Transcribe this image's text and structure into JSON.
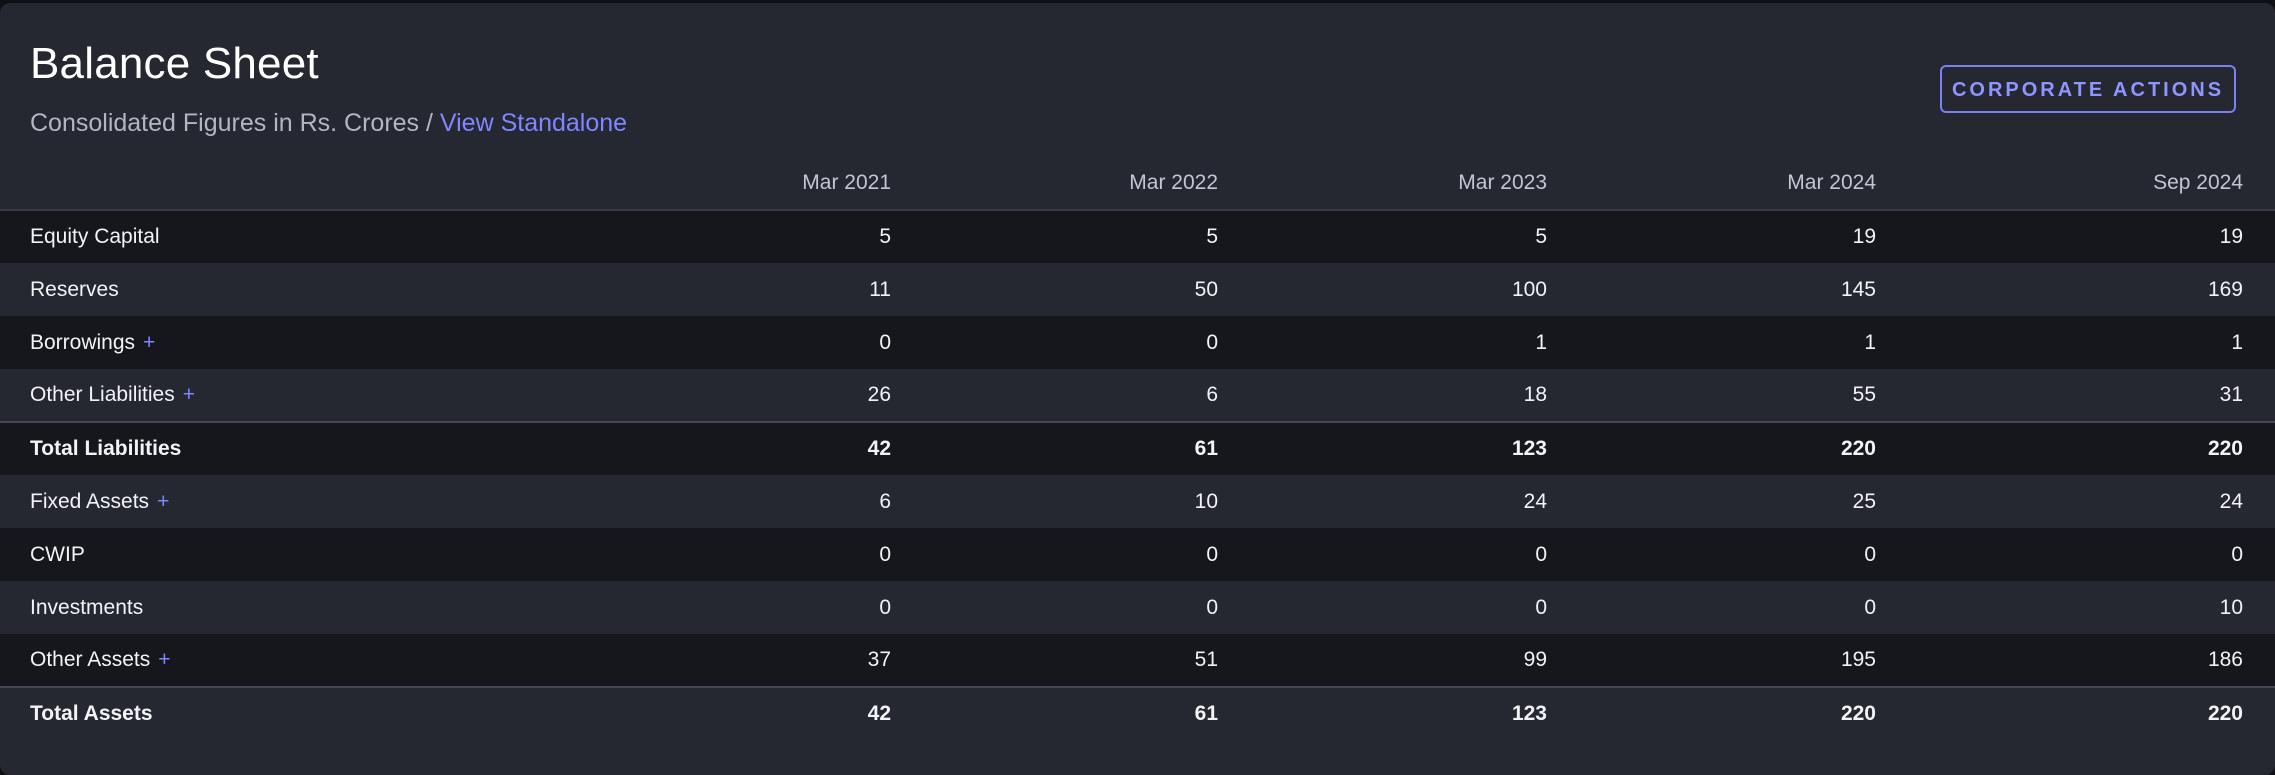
{
  "header": {
    "title": "Balance Sheet",
    "subtitle_prefix": "Consolidated Figures in Rs. Crores / ",
    "subtitle_link": "View Standalone",
    "action_button": "CORPORATE ACTIONS"
  },
  "colors": {
    "background": "#252731",
    "row_alt": "#15171d",
    "accent": "#7f86ff"
  },
  "table": {
    "columns": [
      "",
      "Mar 2021",
      "Mar 2022",
      "Mar 2023",
      "Mar 2024",
      "Sep 2024"
    ],
    "rows": [
      {
        "label": "Equity Capital",
        "expand": "",
        "values": [
          "5",
          "5",
          "5",
          "19",
          "19"
        ]
      },
      {
        "label": "Reserves",
        "expand": "",
        "values": [
          "11",
          "50",
          "100",
          "145",
          "169"
        ]
      },
      {
        "label": "Borrowings",
        "expand": "+",
        "values": [
          "0",
          "0",
          "1",
          "1",
          "1"
        ]
      },
      {
        "label": "Other Liabilities",
        "expand": "+",
        "values": [
          "26",
          "6",
          "18",
          "55",
          "31"
        ]
      },
      {
        "label": "Total Liabilities",
        "expand": "",
        "values": [
          "42",
          "61",
          "123",
          "220",
          "220"
        ]
      },
      {
        "label": "Fixed Assets",
        "expand": "+",
        "values": [
          "6",
          "10",
          "24",
          "25",
          "24"
        ]
      },
      {
        "label": "CWIP",
        "expand": "",
        "values": [
          "0",
          "0",
          "0",
          "0",
          "0"
        ]
      },
      {
        "label": "Investments",
        "expand": "",
        "values": [
          "0",
          "0",
          "0",
          "0",
          "10"
        ]
      },
      {
        "label": "Other Assets",
        "expand": "+",
        "values": [
          "37",
          "51",
          "99",
          "195",
          "186"
        ]
      },
      {
        "label": "Total Assets",
        "expand": "",
        "values": [
          "42",
          "61",
          "123",
          "220",
          "220"
        ]
      }
    ]
  }
}
